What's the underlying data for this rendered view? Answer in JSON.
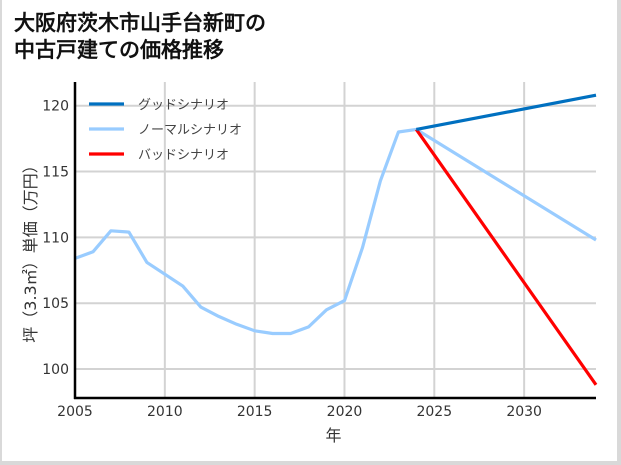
{
  "title_lines": [
    "大阪府茨木市山手台新町の",
    "中古戸建ての価格推移"
  ],
  "chart_data": {
    "type": "line",
    "title": "大阪府茨木市山手台新町の中古戸建ての価格推移",
    "xlabel": "年",
    "ylabel": "坪（3.3㎡）単価（万円）",
    "xlim": [
      2005,
      2034
    ],
    "ylim": [
      97.8,
      121.8
    ],
    "xticks": [
      2005,
      2010,
      2015,
      2020,
      2025,
      2030
    ],
    "yticks": [
      100,
      105,
      110,
      115,
      120
    ],
    "grid": true,
    "legend_position": "upper left",
    "series": [
      {
        "name": "グッドシナリオ",
        "color": "#0070c0",
        "x": [
          2024,
          2034
        ],
        "values": [
          118.2,
          120.8
        ]
      },
      {
        "name": "ノーマルシナリオ",
        "color": "#99ccff",
        "x": [
          2005,
          2006,
          2007,
          2008,
          2009,
          2010,
          2011,
          2012,
          2013,
          2014,
          2015,
          2016,
          2017,
          2018,
          2019,
          2020,
          2021,
          2022,
          2023,
          2024,
          2034
        ],
        "values": [
          108.4,
          108.9,
          110.5,
          110.4,
          108.1,
          107.2,
          106.3,
          104.7,
          104.0,
          103.4,
          102.9,
          102.7,
          102.7,
          103.2,
          104.5,
          105.2,
          109.2,
          114.3,
          118.0,
          118.2,
          109.8
        ]
      },
      {
        "name": "バッドシナリオ",
        "color": "#ff0000",
        "x": [
          2024,
          2034
        ],
        "values": [
          118.2,
          98.8
        ]
      }
    ]
  }
}
